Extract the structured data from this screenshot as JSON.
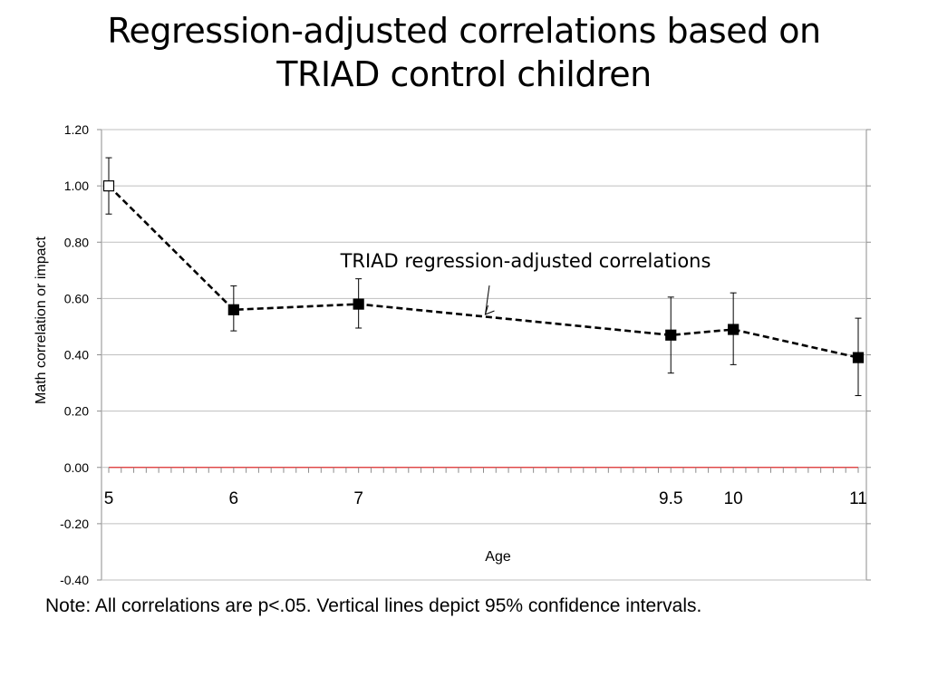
{
  "title_lines": [
    "Regression-adjusted correlations based on",
    "TRIAD control children"
  ],
  "note": "Note: All correlations are p<.05. Vertical lines depict 95% confidence intervals.",
  "colors": {
    "series": "#000000",
    "zero_line": "#e03030",
    "grid": "#bfbfbf",
    "frame": "#8c8c8c"
  },
  "chart_data": {
    "type": "line",
    "title": "Regression-adjusted correlations based on TRIAD control children",
    "xlabel": "Age",
    "ylabel": "Math correlation or impact",
    "ylim": [
      -0.4,
      1.2
    ],
    "xlim": [
      5,
      11
    ],
    "y_ticks": [
      "1.20",
      "1.00",
      "0.80",
      "0.60",
      "0.40",
      "0.20",
      "0.00",
      "-0.20",
      "-0.40"
    ],
    "y_tick_values": [
      1.2,
      1.0,
      0.8,
      0.6,
      0.4,
      0.2,
      0.0,
      -0.2,
      -0.4
    ],
    "x_tick_labels": [
      "5",
      "6",
      "7",
      "9.5",
      "10",
      "11"
    ],
    "x_tick_values": [
      5,
      6,
      7,
      9.5,
      10,
      11
    ],
    "grid": true,
    "series": [
      {
        "name": "TRIAD regression-adjusted correlations",
        "x": [
          5,
          6,
          7,
          9.5,
          10,
          11
        ],
        "y": [
          1.0,
          0.56,
          0.58,
          0.47,
          0.49,
          0.39
        ],
        "ci_low": [
          0.9,
          0.485,
          0.495,
          0.335,
          0.365,
          0.255
        ],
        "ci_high": [
          1.1,
          0.645,
          0.67,
          0.605,
          0.62,
          0.53
        ],
        "marker_open": [
          true,
          false,
          false,
          false,
          false,
          false
        ],
        "style": "dashed"
      }
    ],
    "annotations": [
      {
        "text": "TRIAD regression-adjusted correlations",
        "points_to_x": 8.0
      }
    ]
  }
}
